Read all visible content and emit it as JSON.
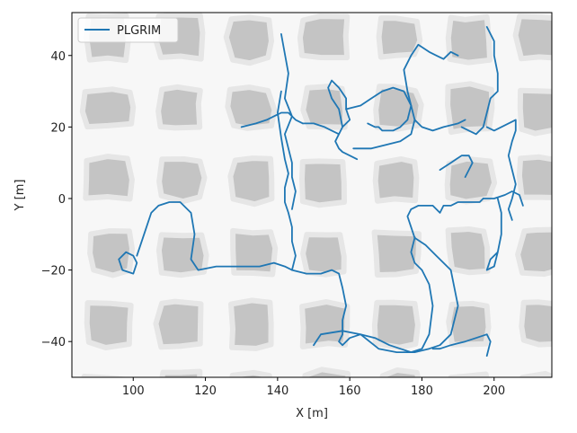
{
  "chart_data": {
    "type": "line",
    "title": "",
    "xlabel": "X [m]",
    "ylabel": "Y [m]",
    "xlim": [
      83,
      216
    ],
    "ylim": [
      -50,
      52
    ],
    "xticks": [
      100,
      120,
      140,
      160,
      180,
      200
    ],
    "yticks": [
      -40,
      -20,
      0,
      20,
      40
    ],
    "xtick_labels": [
      "100",
      "120",
      "140",
      "160",
      "180",
      "200"
    ],
    "ytick_labels": [
      "−40",
      "−20",
      "0",
      "20",
      "40"
    ],
    "grid": false,
    "legend_position": "top-left",
    "background": "occupancy map with grey blocks separated by light free-space corridors",
    "colors": {
      "line": "#1f77b4",
      "blocks": "#c4c4c4",
      "corridors": "#f7f7f7",
      "frame": "#000000"
    },
    "series": [
      {
        "name": "PLGRIM",
        "segments": [
          {
            "x": [
              96,
              97,
              100,
              101,
              100,
              98,
              96
            ],
            "y": [
              -17,
              -20,
              -21,
              -18,
              -16,
              -15,
              -17
            ]
          },
          {
            "x": [
              101,
              103,
              105,
              107,
              110,
              113,
              116,
              117,
              116,
              118,
              123,
              130,
              135,
              139,
              142,
              144,
              148,
              152,
              155,
              157,
              158,
              159,
              158,
              158,
              157,
              158,
              160,
              163,
              167,
              171,
              174,
              177,
              180,
              182,
              183,
              182,
              180,
              178,
              177,
              178
            ],
            "y": [
              -16,
              -10,
              -4,
              -2,
              -1,
              -1,
              -4,
              -10,
              -17,
              -20,
              -19,
              -19,
              -19,
              -18,
              -19,
              -20,
              -21,
              -21,
              -20,
              -21,
              -25,
              -30,
              -34,
              -38,
              -40,
              -41,
              -39,
              -38,
              -39,
              -41,
              -42,
              -43,
              -42,
              -38,
              -30,
              -24,
              -20,
              -18,
              -15,
              -11
            ]
          },
          {
            "x": [
              178,
              177,
              176,
              177,
              179,
              183,
              185,
              186,
              188,
              190,
              192,
              194,
              196,
              197
            ],
            "y": [
              -11,
              -8,
              -5,
              -3,
              -2,
              -2,
              -4,
              -2,
              -2,
              -1,
              -1,
              -1,
              -1,
              0
            ]
          },
          {
            "x": [
              178,
              181,
              184,
              188,
              190,
              188,
              185,
              182,
              178,
              173,
              168,
              163,
              158,
              152,
              150
            ],
            "y": [
              -11,
              -13,
              -16,
              -20,
              -30,
              -38,
              -41,
              -42,
              -43,
              -43,
              -42,
              -38,
              -37,
              -38,
              -41
            ]
          },
          {
            "x": [
              183,
              185,
              188,
              192,
              195,
              198,
              199,
              198
            ],
            "y": [
              -42,
              -42,
              -41,
              -40,
              -39,
              -38,
              -40,
              -44
            ]
          },
          {
            "x": [
              197,
              200,
              203,
              205,
              207,
              208
            ],
            "y": [
              0,
              0,
              1,
              2,
              1,
              -2
            ]
          },
          {
            "x": [
              201,
              202,
              202,
              201,
              200,
              198,
              199,
              201
            ],
            "y": [
              0,
              -4,
              -10,
              -15,
              -19,
              -20,
              -17,
              -15
            ]
          },
          {
            "x": [
              144,
              145,
              144,
              144,
              143,
              142,
              142,
              143,
              142,
              141,
              140,
              141
            ],
            "y": [
              -20,
              -16,
              -12,
              -8,
              -4,
              -1,
              3,
              7,
              11,
              17,
              24,
              30
            ]
          },
          {
            "x": [
              144,
              145,
              144,
              144,
              143,
              142,
              144,
              142,
              143,
              141
            ],
            "y": [
              -3,
              2,
              6,
              10,
              14,
              18,
              23,
              28,
              35,
              46
            ]
          },
          {
            "x": [
              130,
              134,
              137,
              139,
              141,
              143,
              145,
              147
            ],
            "y": [
              20,
              21,
              22,
              23,
              24,
              24,
              22,
              21
            ]
          },
          {
            "x": [
              147,
              150,
              153,
              155,
              157,
              158,
              157,
              155,
              154,
              155,
              157,
              159,
              159,
              160,
              158,
              157,
              156,
              157,
              158,
              160,
              162
            ],
            "y": [
              21,
              21,
              20,
              19,
              18,
              20,
              25,
              28,
              31,
              33,
              31,
              28,
              25,
              22,
              20,
              18,
              16,
              14,
              13,
              12,
              11
            ]
          },
          {
            "x": [
              159,
              163,
              166,
              169,
              172,
              175,
              177,
              178,
              177,
              174,
              170,
              166,
              163,
              161
            ],
            "y": [
              25,
              26,
              28,
              30,
              31,
              30,
              26,
              22,
              18,
              16,
              15,
              14,
              14,
              14
            ]
          },
          {
            "x": [
              165,
              167,
              168,
              169,
              170,
              171,
              172,
              174,
              176,
              177,
              176,
              175,
              177,
              179,
              182,
              184,
              186,
              188,
              190
            ],
            "y": [
              21,
              20,
              20,
              19,
              19,
              19,
              19,
              20,
              22,
              26,
              30,
              36,
              40,
              43,
              41,
              40,
              39,
              41,
              40
            ]
          },
          {
            "x": [
              178,
              180,
              183,
              186,
              190,
              192
            ],
            "y": [
              22,
              20,
              19,
              20,
              21,
              22
            ]
          },
          {
            "x": [
              191,
              193,
              195,
              197,
              198,
              199,
              201,
              201,
              200,
              200,
              198
            ],
            "y": [
              20,
              19,
              18,
              20,
              24,
              28,
              30,
              35,
              40,
              44,
              48
            ]
          },
          {
            "x": [
              198,
              200,
              202,
              204,
              206,
              206,
              205,
              204,
              205,
              206,
              205,
              204,
              205
            ],
            "y": [
              20,
              19,
              20,
              21,
              22,
              19,
              16,
              12,
              8,
              4,
              0,
              -3,
              -6
            ]
          },
          {
            "x": [
              185,
              188,
              191,
              193,
              194,
              193,
              192
            ],
            "y": [
              8,
              10,
              12,
              12,
              10,
              8,
              6
            ]
          }
        ]
      }
    ]
  }
}
